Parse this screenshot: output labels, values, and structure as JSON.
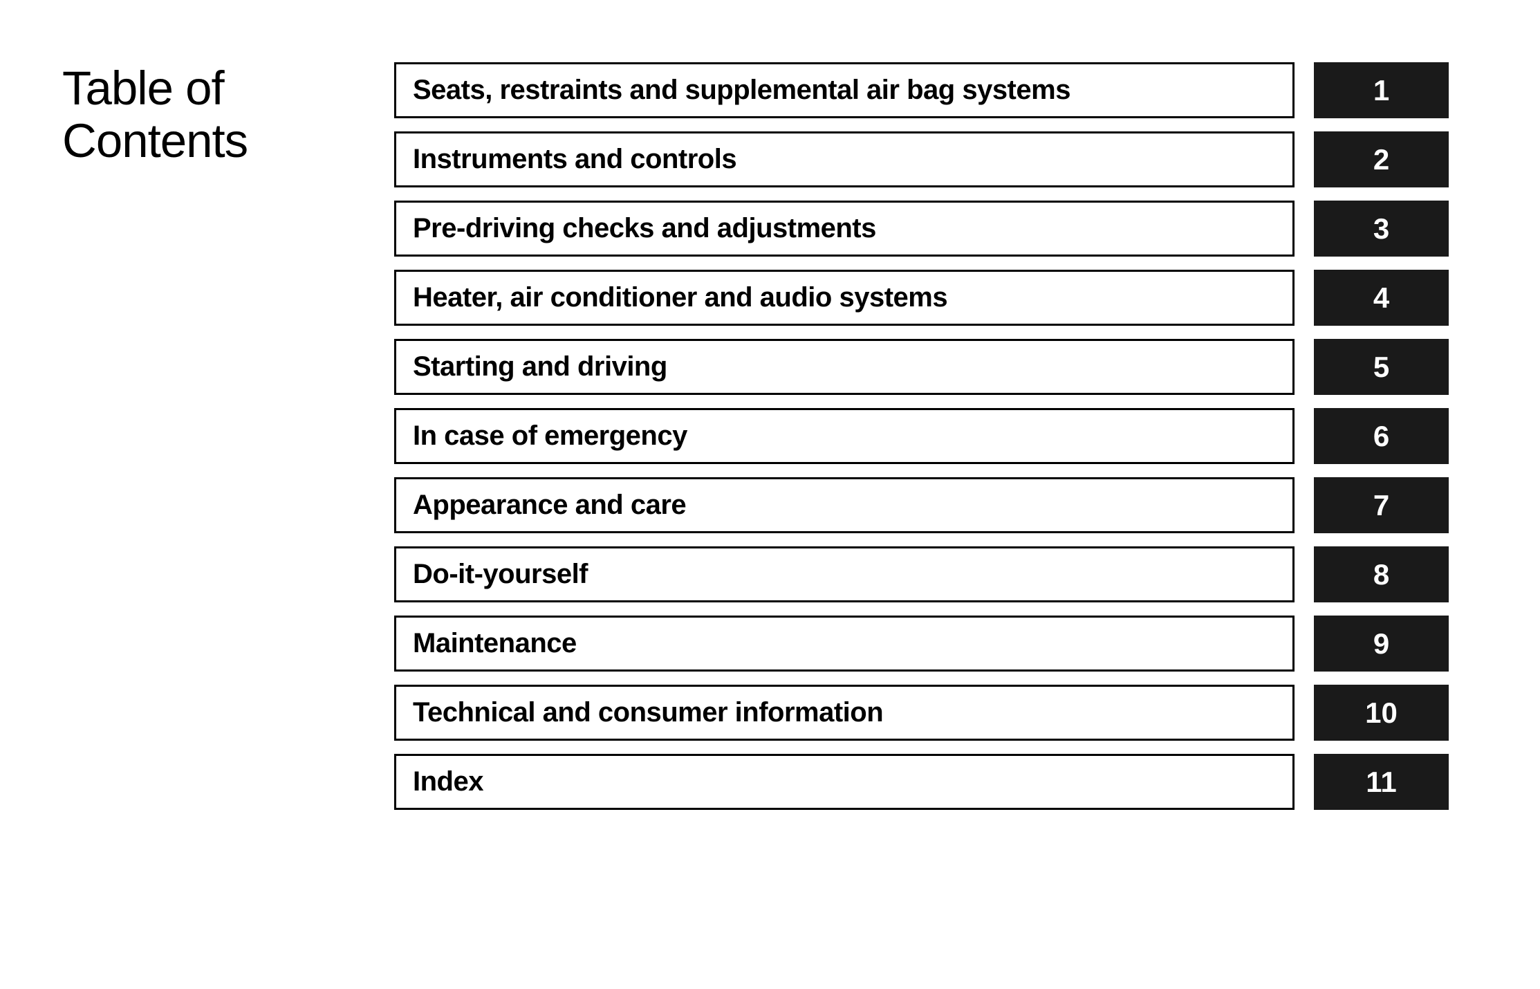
{
  "title": {
    "line1": "Table of",
    "line2": "Contents"
  },
  "toc": {
    "border_color": "#000000",
    "label_bg": "#ffffff",
    "number_bg": "#1a1a1a",
    "number_color": "#ffffff",
    "label_color": "#000000",
    "label_fontsize": 40,
    "number_fontsize": 42,
    "items": [
      {
        "label": "Seats, restraints and supplemental air bag systems",
        "number": "1"
      },
      {
        "label": "Instruments and controls",
        "number": "2"
      },
      {
        "label": "Pre-driving checks and adjustments",
        "number": "3"
      },
      {
        "label": "Heater, air conditioner and audio systems",
        "number": "4"
      },
      {
        "label": "Starting and driving",
        "number": "5"
      },
      {
        "label": "In case of emergency",
        "number": "6"
      },
      {
        "label": "Appearance and care",
        "number": "7"
      },
      {
        "label": "Do-it-yourself",
        "number": "8"
      },
      {
        "label": "Maintenance",
        "number": "9"
      },
      {
        "label": "Technical and consumer information",
        "number": "10"
      },
      {
        "label": "Index",
        "number": "11"
      }
    ]
  }
}
